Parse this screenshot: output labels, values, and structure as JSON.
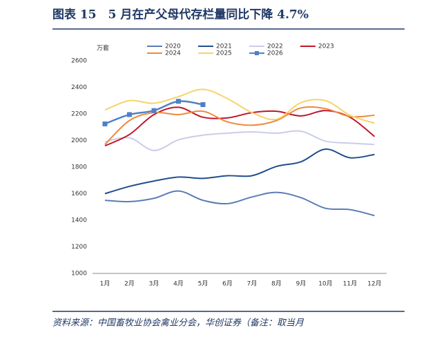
{
  "chart_data": {
    "type": "line",
    "title": "图表 15　5 月在产父母代存栏量同比下降 4.7%",
    "y_label": "万套",
    "source": "资料来源：中国畜牧业协会禽业分会，华创证券（备注：取当月",
    "categories": [
      "1月",
      "2月",
      "3月",
      "4月",
      "5月",
      "6月",
      "7月",
      "8月",
      "9月",
      "10月",
      "11月",
      "12月"
    ],
    "ylim": [
      1000,
      2600
    ],
    "yticks": [
      1000,
      1200,
      1400,
      1600,
      1800,
      2000,
      2200,
      2400,
      2600
    ],
    "series": [
      {
        "name": "2020",
        "color": "#5b7cb6",
        "values": [
          1550,
          1540,
          1565,
          1620,
          1550,
          1525,
          1575,
          1610,
          1570,
          1490,
          1480,
          1435
        ]
      },
      {
        "name": "2021",
        "color": "#1f4e8c",
        "values": [
          1600,
          1655,
          1695,
          1725,
          1715,
          1735,
          1735,
          1805,
          1840,
          1935,
          1870,
          1895
        ]
      },
      {
        "name": "2022",
        "color": "#c9cde8",
        "values": [
          1990,
          2020,
          1925,
          2005,
          2040,
          2055,
          2065,
          2055,
          2070,
          1995,
          1980,
          1970
        ]
      },
      {
        "name": "2023",
        "color": "#c0142a",
        "values": [
          1960,
          2045,
          2195,
          2250,
          2175,
          2170,
          2210,
          2220,
          2185,
          2225,
          2175,
          2030
        ]
      },
      {
        "name": "2024",
        "color": "#ed8a3f",
        "values": [
          1970,
          2150,
          2210,
          2195,
          2220,
          2140,
          2115,
          2150,
          2245,
          2240,
          2180,
          2190
        ]
      },
      {
        "name": "2025",
        "color": "#f7d36a",
        "values": [
          2230,
          2300,
          2280,
          2330,
          2385,
          2315,
          2210,
          2160,
          2285,
          2300,
          2190,
          2130
        ]
      },
      {
        "name": "2026",
        "color": "#4f7fc8",
        "marker": "square",
        "values": [
          2125,
          2195,
          2225,
          2295,
          2270,
          null,
          null,
          null,
          null,
          null,
          null,
          null
        ]
      }
    ]
  }
}
